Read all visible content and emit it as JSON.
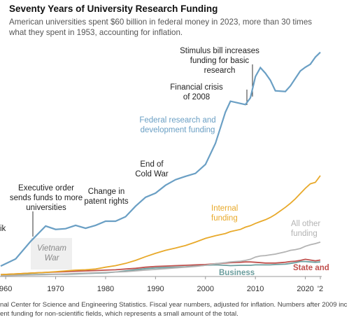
{
  "chart_data": {
    "type": "line",
    "title": "Seventy Years of University Research Funding",
    "subtitle": "American universities spent $60 billion in federal money in 2023, more than 30 times what they spent in 1953, accounting for inflation.",
    "x": [
      1959,
      1962,
      1965,
      1968,
      1970,
      1972,
      1974,
      1976,
      1978,
      1980,
      1982,
      1984,
      1986,
      1988,
      1990,
      1992,
      1994,
      1996,
      1998,
      2000,
      2002,
      2004,
      2005,
      2007,
      2008,
      2009,
      2010,
      2011,
      2012,
      2013,
      2014,
      2016,
      2017,
      2018,
      2019,
      2020,
      2021,
      2022,
      2023
    ],
    "series": [
      {
        "name": "Federal research and development funding",
        "color": "#6a9fc4",
        "values": [
          2.8,
          4.7,
          9.4,
          13.5,
          12.6,
          12.8,
          13.7,
          12.9,
          13.7,
          14.8,
          14.8,
          16,
          18.8,
          21.2,
          22.3,
          24.4,
          25.9,
          26.8,
          27.6,
          30,
          35.6,
          44,
          46.9,
          46.3,
          46,
          47.8,
          53.5,
          55.9,
          54.4,
          52.5,
          49.7,
          49.5,
          51,
          53,
          55,
          56,
          56.8,
          58.7,
          60
        ]
      },
      {
        "name": "Internal funding",
        "color": "#e8a92a",
        "values": [
          0.5,
          0.7,
          0.9,
          1.1,
          1.3,
          1.5,
          1.7,
          1.8,
          2,
          2.5,
          2.9,
          3.5,
          4.3,
          5.3,
          6.2,
          7,
          7.6,
          8.3,
          9.2,
          10.2,
          10.9,
          11.5,
          12,
          12.6,
          13.2,
          13.6,
          14.2,
          14.7,
          15.2,
          15.8,
          16.6,
          18.5,
          19.6,
          20.8,
          22.2,
          23.6,
          24.8,
          25.2,
          27
        ]
      },
      {
        "name": "All other funding",
        "color": "#b3b3b3",
        "values": [
          0.2,
          0.3,
          0.4,
          0.5,
          0.6,
          0.7,
          0.8,
          0.9,
          1,
          1.1,
          1.2,
          1.3,
          1.5,
          1.7,
          1.9,
          2.1,
          2.3,
          2.5,
          2.7,
          3,
          3.4,
          3.7,
          3.9,
          4.1,
          4.3,
          4.6,
          5.2,
          5.5,
          5.6,
          5.8,
          6,
          6.6,
          7,
          7.2,
          7.5,
          8.1,
          8.5,
          8.8,
          9.2
        ]
      },
      {
        "name": "State and",
        "color": "#c0504d",
        "values": [
          0.5,
          0.7,
          0.9,
          1.1,
          1.2,
          1.3,
          1.4,
          1.5,
          1.6,
          1.7,
          1.8,
          2,
          2.2,
          2.5,
          2.7,
          2.8,
          2.9,
          3,
          3.1,
          3.2,
          3.4,
          3.6,
          3.7,
          3.8,
          3.9,
          3.9,
          3.8,
          3.7,
          3.6,
          3.6,
          3.6,
          3.8,
          4,
          4.1,
          4.3,
          4.6,
          4.4,
          4.2,
          4.4
        ]
      },
      {
        "name": "Business",
        "color": "#6b9e9e",
        "values": [
          0.3,
          0.4,
          0.5,
          0.6,
          0.6,
          0.6,
          0.7,
          0.8,
          0.9,
          1,
          1.2,
          1.5,
          1.8,
          2.1,
          2.3,
          2.4,
          2.5,
          2.6,
          2.8,
          3,
          3.1,
          3,
          2.9,
          3,
          3,
          3,
          3.1,
          3.1,
          3.1,
          3.1,
          3.2,
          3.3,
          3.5,
          3.7,
          4,
          4,
          3.9,
          3.8,
          3.9
        ]
      }
    ],
    "xlim": [
      1959,
      2023
    ],
    "ylim": [
      0,
      62
    ],
    "xticks": [
      {
        "value": 1960,
        "label": "960"
      },
      1970,
      1980,
      1990,
      2000,
      2010,
      2020,
      {
        "value": 2023,
        "label": "'2"
      }
    ],
    "annotations": [
      "Stimulus bill increases funding for basic research",
      "Financial crisis of 2008",
      "End of Cold War",
      "Change in patent rights",
      "Executive order sends funds to more universities",
      "ik",
      "Vietnam War"
    ],
    "notes": [
      "nal Center for Science and Engineering Statistics. Fiscal year numbers, adjusted for inflation. Numbers after 2009 inc",
      "ent funding for non-scientific fields, which represents a small amount of the total."
    ]
  }
}
